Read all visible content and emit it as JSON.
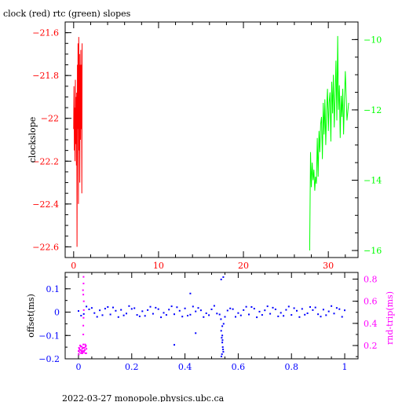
{
  "page_title": "clock (red) rtc (green) slopes",
  "footer": "2022-03-27  monopole.physics.ubc.ca",
  "colors": {
    "axis": "#000000",
    "red": "#ff0000",
    "green": "#00ff00",
    "blue": "#0000ff",
    "magenta": "#ff00ff"
  },
  "chart_data": [
    {
      "type": "line",
      "title": "clock (red) rtc (green) slopes",
      "ylabel": "clockslope",
      "xlim": [
        -1,
        33.5
      ],
      "ylim_left": [
        -22.65,
        -21.55
      ],
      "ylim_right": [
        -16.2,
        -9.5
      ],
      "x_ticks": [
        0,
        10,
        20,
        30
      ],
      "x_tick_labels": [
        "0",
        "10",
        "20",
        "30"
      ],
      "y_left_ticks": [
        -22.6,
        -22.4,
        -22.2,
        -22,
        -21.8,
        -21.6
      ],
      "y_left_tick_labels": [
        "−22.6",
        "−22.4",
        "−22.2",
        "−22",
        "−21.8",
        "−21.6"
      ],
      "y_right_ticks": [
        -16,
        -14,
        -12,
        -10
      ],
      "y_right_tick_labels": [
        "−16",
        "−14",
        "−12",
        "−10"
      ],
      "series": [
        {
          "color": "red",
          "axis": "left",
          "x": [
            0.0,
            0.04,
            0.08,
            0.12,
            0.16,
            0.2,
            0.24,
            0.28,
            0.32,
            0.36,
            0.4,
            0.44,
            0.48,
            0.52,
            0.56,
            0.6,
            0.64,
            0.68,
            0.72,
            0.76,
            0.8,
            0.84,
            0.88,
            0.92,
            0.96,
            1.0
          ],
          "y": [
            -22.05,
            -21.85,
            -22.15,
            -21.95,
            -22.2,
            -21.82,
            -22.12,
            -21.9,
            -22.22,
            -21.88,
            -22.6,
            -21.75,
            -22.05,
            -21.65,
            -22.4,
            -21.62,
            -22.15,
            -21.7,
            -22.3,
            -21.75,
            -22.1,
            -21.68,
            -22.05,
            -21.75,
            -22.35,
            -21.65
          ]
        },
        {
          "color": "green",
          "axis": "right",
          "x": [
            27.8,
            27.9,
            28.0,
            28.1,
            28.2,
            28.3,
            28.4,
            28.5,
            28.6,
            28.7,
            28.8,
            28.9,
            29.0,
            29.1,
            29.2,
            29.3,
            29.4,
            29.5,
            29.6,
            29.7,
            29.8,
            29.9,
            30.0,
            30.1,
            30.2,
            30.3,
            30.4,
            30.5,
            30.6,
            30.7,
            30.8,
            30.9,
            31.0,
            31.1,
            31.2,
            31.3,
            31.4,
            31.5,
            31.6,
            31.7,
            31.8,
            31.9,
            32.0,
            32.2,
            32.4
          ],
          "y": [
            -16.0,
            -13.2,
            -14.2,
            -13.5,
            -14.0,
            -13.7,
            -14.3,
            -13.9,
            -14.1,
            -12.8,
            -13.9,
            -12.6,
            -13.2,
            -12.4,
            -12.2,
            -13.4,
            -11.8,
            -12.7,
            -11.7,
            -13.0,
            -12.0,
            -11.4,
            -12.6,
            -11.8,
            -11.5,
            -12.9,
            -11.2,
            -12.1,
            -11.0,
            -12.5,
            -11.6,
            -10.6,
            -12.3,
            -9.9,
            -12.0,
            -11.3,
            -12.8,
            -11.6,
            -12.2,
            -11.4,
            -12.7,
            -11.7,
            -10.9,
            -12.3,
            -11.8
          ]
        }
      ]
    },
    {
      "type": "scatter",
      "ylabel": "offset(ms)",
      "ylabel_right": "rnd-trip(ms)",
      "xlim": [
        -0.05,
        1.05
      ],
      "ylim_left": [
        -0.2,
        0.17
      ],
      "ylim_right": [
        0.08,
        0.86
      ],
      "x_ticks": [
        0,
        0.2,
        0.4,
        0.6,
        0.8,
        1
      ],
      "x_tick_labels": [
        "0",
        "0.2",
        "0.4",
        "0.6",
        "0.8",
        "1"
      ],
      "y_left_ticks": [
        -0.2,
        -0.1,
        0,
        0.1
      ],
      "y_left_tick_labels": [
        "−0.2",
        "−0.1",
        "0",
        "0.1"
      ],
      "y_right_ticks": [
        0.2,
        0.4,
        0.6,
        0.8
      ],
      "y_right_tick_labels": [
        "0.2",
        "0.4",
        "0.6",
        "0.8"
      ],
      "series": [
        {
          "color": "blue",
          "axis": "left",
          "x": [
            0.0,
            0.02,
            0.04,
            0.06,
            0.08,
            0.1,
            0.12,
            0.14,
            0.16,
            0.18,
            0.2,
            0.22,
            0.24,
            0.26,
            0.28,
            0.3,
            0.32,
            0.34,
            0.36,
            0.38,
            0.4,
            0.42,
            0.44,
            0.46,
            0.48,
            0.5,
            0.52,
            0.53,
            0.535,
            0.54,
            0.545,
            0.55,
            0.56,
            0.58,
            0.6,
            0.62,
            0.64,
            0.66,
            0.68,
            0.7,
            0.72,
            0.74,
            0.76,
            0.78,
            0.8,
            0.82,
            0.84,
            0.86,
            0.88,
            0.9,
            0.92,
            0.94,
            0.96,
            0.98,
            1.0,
            0.01,
            0.05,
            0.09,
            0.13,
            0.17,
            0.21,
            0.25,
            0.29,
            0.33,
            0.37,
            0.41,
            0.45,
            0.49,
            0.57,
            0.61,
            0.65,
            0.69,
            0.73,
            0.77,
            0.81,
            0.85,
            0.89,
            0.93,
            0.97,
            0.03,
            0.07,
            0.11,
            0.15,
            0.19,
            0.23,
            0.27,
            0.31,
            0.35,
            0.39,
            0.43,
            0.47,
            0.51,
            0.59,
            0.63,
            0.67,
            0.71,
            0.75,
            0.79,
            0.83,
            0.87,
            0.91,
            0.95,
            0.99,
            0.536,
            0.538,
            0.54,
            0.542,
            0.544,
            0.537,
            0.541,
            0.543,
            0.539,
            0.536,
            0.544,
            0.54,
            0.42,
            0.44,
            0.36
          ],
          "y": [
            0.005,
            -0.008,
            0.012,
            -0.004,
            0.008,
            0.015,
            -0.01,
            0.006,
            0.01,
            -0.006,
            0.014,
            -0.012,
            0.004,
            0.009,
            -0.007,
            0.013,
            -0.003,
            0.011,
            -0.009,
            0.006,
            0.016,
            -0.011,
            0.003,
            0.008,
            -0.005,
            0.012,
            -0.006,
            -0.01,
            -0.03,
            -0.06,
            -0.05,
            -0.02,
            0.007,
            0.013,
            -0.004,
            0.009,
            -0.01,
            0.015,
            0.002,
            0.008,
            -0.007,
            0.012,
            -0.003,
            0.01,
            -0.012,
            0.006,
            0.014,
            -0.005,
            0.009,
            -0.009,
            0.011,
            0.003,
            -0.006,
            0.013,
            0.008,
            -0.015,
            0.018,
            -0.013,
            0.02,
            -0.014,
            0.017,
            -0.016,
            0.019,
            -0.012,
            0.021,
            -0.015,
            0.018,
            -0.013,
            0.016,
            -0.014,
            0.022,
            -0.012,
            0.019,
            -0.016,
            0.017,
            -0.011,
            0.02,
            -0.013,
            0.018,
            0.024,
            -0.02,
            0.022,
            -0.021,
            0.026,
            -0.018,
            0.023,
            -0.022,
            0.025,
            -0.019,
            0.024,
            -0.021,
            0.027,
            -0.02,
            0.023,
            -0.022,
            0.025,
            -0.018,
            0.024,
            -0.021,
            0.022,
            -0.019,
            0.026,
            -0.02,
            -0.08,
            -0.11,
            -0.13,
            -0.15,
            -0.17,
            -0.19,
            -0.12,
            -0.16,
            -0.18,
            0.14,
            0.15,
            -0.1,
            0.08,
            -0.09,
            -0.14
          ],
          "labels_hidden": true
        },
        {
          "color": "magenta",
          "axis": "right",
          "x": [
            0.0,
            0.002,
            0.004,
            0.006,
            0.008,
            0.01,
            0.012,
            0.014,
            0.016,
            0.018,
            0.02,
            0.022,
            0.024,
            0.026,
            0.028,
            0.03,
            0.001,
            0.005,
            0.009,
            0.013,
            0.017,
            0.021,
            0.025,
            0.029,
            0.003,
            0.007,
            0.011,
            0.015,
            0.019,
            0.023,
            0.027,
            0.018,
            0.019,
            0.02,
            0.017,
            0.019,
            0.018,
            0.02,
            0.019,
            0.018
          ],
          "y": [
            0.15,
            0.18,
            0.14,
            0.2,
            0.16,
            0.13,
            0.19,
            0.17,
            0.15,
            0.21,
            0.14,
            0.18,
            0.16,
            0.13,
            0.2,
            0.17,
            0.12,
            0.16,
            0.19,
            0.14,
            0.18,
            0.15,
            0.21,
            0.13,
            0.17,
            0.2,
            0.15,
            0.13,
            0.18,
            0.16,
            0.19,
            0.3,
            0.45,
            0.6,
            0.7,
            0.82,
            0.38,
            0.52,
            0.76,
            0.66
          ]
        }
      ]
    }
  ]
}
